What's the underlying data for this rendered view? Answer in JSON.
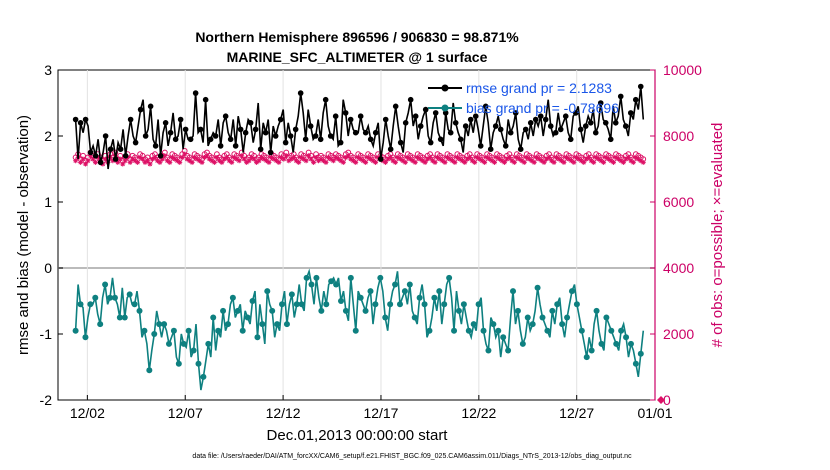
{
  "chart_data": {
    "type": "line",
    "title": "Northern Hemisphere 896596 / 906830 = 98.871%",
    "subtitle": "MARINE_SFC_ALTIMETER @ 1 surface",
    "xlabel": "Dec.01,2013 00:00:00 start",
    "ylabel_left": "rmse and bias (model - observation)",
    "ylabel_right": "# of obs: o=possible; ×=evaluated",
    "ylim_left": [
      -2,
      3
    ],
    "ylim_right": [
      0,
      10000
    ],
    "xlim": [
      0.5,
      31.0
    ],
    "xticks": [
      2,
      7,
      12,
      17,
      22,
      27,
      31
    ],
    "xtick_labels": [
      "12/02",
      "12/07",
      "12/12",
      "12/17",
      "12/22",
      "12/27",
      "01/01"
    ],
    "yticks_left": [
      "-2",
      "-1",
      "0",
      "1",
      "2",
      "3"
    ],
    "yticks_right": [
      "0",
      "2000",
      "4000",
      "6000",
      "8000",
      "10000"
    ],
    "footer": "data file: /Users/raeder/DAI/ATM_forcXX/CAM6_setup/f.e21.FHIST_BGC.f09_025.CAM6assim.011/Diags_NTrS_2013-12/obs_diag_output.nc",
    "legend": [
      {
        "label": "rmse grand pr = 2.1283",
        "color": "#000000"
      },
      {
        "label": "bias grand pr = -0.78696",
        "color": "#0e8080"
      }
    ],
    "colors": {
      "rmse": "#000000",
      "bias": "#0e8080",
      "obs": "#dd1166",
      "zero": "#bbbbbb"
    },
    "series": [
      {
        "name": "rmse",
        "values": [
          2.25,
          1.65,
          2.2,
          2.05,
          2.25,
          2.15,
          1.75,
          1.85,
          1.7,
          1.95,
          1.6,
          1.75,
          2.0,
          1.5,
          1.8,
          1.95,
          1.65,
          1.9,
          1.8,
          2.1,
          1.7,
          2.0,
          2.25,
          2.0,
          1.9,
          2.15,
          2.4,
          2.55,
          2.0,
          2.1,
          2.45,
          1.95,
          1.85,
          2.25,
          1.7,
          2.05,
          2.2,
          1.85,
          2.05,
          2.35,
          1.95,
          2.0,
          2.25,
          1.8,
          2.1,
          1.95,
          1.95,
          2.0,
          2.65,
          2.05,
          2.1,
          1.9,
          2.55,
          1.85,
          1.95,
          2.05,
          2.0,
          2.25,
          1.85,
          2.2,
          2.3,
          2.05,
          1.95,
          2.25,
          1.85,
          2.3,
          2.1,
          1.75,
          2.05,
          2.25,
          2.2,
          1.9,
          2.1,
          2.5,
          1.8,
          2.2,
          2.05,
          2.25,
          1.75,
          2.15,
          2.0,
          2.15,
          2.25,
          2.4,
          1.9,
          2.2,
          2.0,
          1.75,
          2.1,
          2.3,
          2.65,
          2.35,
          1.95,
          2.4,
          2.15,
          1.95,
          2.0,
          2.25,
          1.95,
          2.35,
          2.55,
          2.15,
          2.0,
          1.95,
          2.3,
          1.85,
          1.9,
          2.55,
          2.35,
          2.0,
          2.25,
          2.1,
          2.05,
          2.05,
          2.3,
          2.1,
          2.05,
          2.15,
          1.95,
          1.85,
          2.05,
          2.2,
          1.65,
          1.9,
          2.25,
          2.0,
          1.8,
          2.15,
          2.45,
          2.15,
          1.9,
          1.75,
          2.2,
          2.35,
          2.55,
          2.15,
          2.3,
          1.95,
          2.15,
          2.3,
          2.4,
          2.0,
          1.9,
          2.2,
          2.35,
          2.05,
          1.95,
          1.85,
          2.35,
          2.1,
          2.05,
          2.5,
          2.2,
          2.05,
          1.95,
          1.75,
          2.15,
          2.0,
          2.25,
          2.05,
          2.3,
          2.1,
          1.85,
          2.15,
          2.45,
          2.2,
          1.8,
          2.05,
          2.15,
          2.3,
          2.1,
          1.95,
          1.85,
          2.25,
          2.05,
          2.15,
          2.35,
          1.95,
          1.8,
          2.05,
          2.1,
          1.95,
          2.2,
          2.0,
          2.25,
          2.15,
          2.3,
          2.0,
          2.25,
          2.55,
          2.15,
          2.0,
          2.05,
          2.35,
          2.1,
          2.2,
          2.3,
          2.05,
          1.95,
          2.3,
          2.35,
          2.45,
          2.1,
          1.9,
          2.15,
          2.3,
          2.2,
          2.4,
          2.05,
          2.15,
          2.5,
          2.25,
          2.2,
          2.1,
          1.95,
          2.45,
          2.2,
          2.3,
          2.6,
          2.25,
          2.15,
          2.0,
          2.35,
          2.25,
          2.55,
          2.4,
          2.75,
          2.25
        ]
      },
      {
        "name": "bias",
        "values": [
          -0.95,
          -0.25,
          -0.55,
          -0.6,
          -1.05,
          -0.75,
          -0.55,
          -0.55,
          -0.45,
          -0.7,
          -0.85,
          -0.45,
          -0.25,
          -0.55,
          -0.45,
          -0.15,
          -0.45,
          -0.55,
          -0.75,
          -0.3,
          -0.75,
          -0.45,
          -0.4,
          -0.55,
          -0.55,
          -0.35,
          -0.65,
          -1.05,
          -0.95,
          -1.15,
          -1.55,
          -1.25,
          -1.0,
          -0.65,
          -0.85,
          -1.05,
          -0.85,
          -0.95,
          -1.15,
          -1.05,
          -0.95,
          -1.35,
          -1.45,
          -1.0,
          -1.15,
          -1.2,
          -0.95,
          -1.35,
          -1.25,
          -0.85,
          -1.45,
          -1.85,
          -1.65,
          -1.4,
          -1.15,
          -1.35,
          -0.75,
          -1.25,
          -0.95,
          -1.05,
          -0.65,
          -0.95,
          -0.85,
          -0.55,
          -0.45,
          -0.75,
          -0.65,
          -0.55,
          -0.95,
          -0.65,
          -0.75,
          -0.85,
          -0.5,
          -0.35,
          -1.05,
          -0.55,
          -0.85,
          -1.15,
          -0.35,
          -0.55,
          -0.65,
          -1.05,
          -0.85,
          -0.95,
          -0.55,
          -0.35,
          -0.85,
          -0.55,
          -0.4,
          -0.75,
          -0.55,
          -0.25,
          -0.55,
          -0.65,
          -0.15,
          -0.05,
          -0.25,
          -0.55,
          -0.15,
          -0.45,
          -0.65,
          -0.35,
          -0.55,
          -0.25,
          -0.2,
          -0.15,
          -0.25,
          -0.15,
          -0.5,
          -0.35,
          -0.65,
          -0.8,
          -0.15,
          -0.55,
          -0.95,
          -0.35,
          -0.45,
          -0.55,
          -0.65,
          -0.45,
          -0.35,
          -0.85,
          -0.55,
          -0.3,
          -0.15,
          -0.35,
          -0.75,
          -0.95,
          -0.55,
          -0.35,
          -0.25,
          -0.05,
          -0.55,
          -0.45,
          -0.35,
          -0.55,
          -0.25,
          -0.65,
          -0.75,
          -0.85,
          -0.45,
          -0.25,
          -0.55,
          -1.05,
          -0.95,
          -0.75,
          -0.45,
          -0.65,
          -0.35,
          -0.85,
          -0.55,
          -0.25,
          -0.15,
          -0.45,
          -0.95,
          -0.35,
          -0.65,
          -0.85,
          -0.55,
          -0.75,
          -0.95,
          -1.05,
          -0.85,
          -0.95,
          -0.55,
          -0.45,
          -0.95,
          -1.15,
          -1.25,
          -0.75,
          -0.85,
          -1.05,
          -0.95,
          -1.35,
          -1.05,
          -1.15,
          -1.25,
          -0.75,
          -0.35,
          -0.85,
          -0.65,
          -0.95,
          -1.15,
          -1.05,
          -0.75,
          -0.95,
          -0.85,
          -0.65,
          -0.3,
          -0.55,
          -0.75,
          -0.85,
          -0.95,
          -1.05,
          -0.65,
          -0.85,
          -0.55,
          -0.45,
          -0.85,
          -1.05,
          -0.75,
          -0.55,
          -0.35,
          -0.25,
          -0.55,
          -0.75,
          -0.95,
          -1.15,
          -1.35,
          -1.05,
          -1.25,
          -0.85,
          -0.65,
          -0.95,
          -1.15,
          -1.25,
          -0.75,
          -0.85,
          -0.95,
          -1.05,
          -1.15,
          -1.25,
          -0.95,
          -0.85,
          -1.05,
          -1.35,
          -1.15,
          -1.25,
          -1.45,
          -1.65,
          -1.3,
          -0.95
        ]
      },
      {
        "name": "possible",
        "values": [
          7350,
          7450,
          7300,
          7400,
          7250,
          7350,
          7500,
          7400,
          7300,
          7450,
          7350,
          7250,
          7400,
          7300,
          7450,
          7350,
          7500,
          7300,
          7400,
          7250,
          7350,
          7450,
          7300,
          7400,
          7350,
          7300,
          7450,
          7400,
          7300,
          7350,
          7250,
          7400,
          7450,
          7350,
          7300,
          7400,
          7500,
          7350,
          7300,
          7450,
          7400,
          7350,
          7300,
          7450,
          7550,
          7400,
          7350,
          7300,
          7450,
          7400,
          7350,
          7300,
          7450,
          7500,
          7400,
          7350,
          7300,
          7450,
          7350,
          7300,
          7400,
          7450,
          7350,
          7300,
          7450,
          7400,
          7350,
          7500,
          7400,
          7300,
          7350,
          7450,
          7400,
          7300,
          7350,
          7450,
          7400,
          7350,
          7300,
          7450,
          7400,
          7350,
          7300,
          7450,
          7400,
          7500,
          7350,
          7400,
          7450,
          7350,
          7300,
          7450,
          7400,
          7350,
          7500,
          7400,
          7300,
          7450,
          7350,
          7400,
          7350,
          7300,
          7450,
          7400,
          7350,
          7450,
          7400,
          7350,
          7300,
          7450,
          7500,
          7400,
          7350,
          7300,
          7450,
          7400,
          7350,
          7300,
          7450,
          7400,
          7350,
          7300,
          7450,
          7400,
          7350,
          7300,
          7400,
          7450,
          7350,
          7300,
          7450,
          7400,
          7350,
          7300,
          7450,
          7400,
          7350,
          7300,
          7450,
          7400,
          7350,
          7300,
          7400,
          7450,
          7350,
          7300,
          7450,
          7400,
          7350,
          7300,
          7450,
          7400,
          7350,
          7300,
          7450,
          7400,
          7350,
          7300,
          7400,
          7450,
          7350,
          7300,
          7450,
          7400,
          7350,
          7300,
          7450,
          7400,
          7350,
          7300,
          7450,
          7400,
          7350,
          7300,
          7400,
          7450,
          7350,
          7300,
          7450,
          7400,
          7350,
          7300,
          7450,
          7400,
          7350,
          7300,
          7450,
          7400,
          7350,
          7300,
          7400,
          7450,
          7350,
          7300,
          7450,
          7400,
          7350,
          7300,
          7450,
          7400,
          7350,
          7300,
          7450,
          7400,
          7350,
          7300,
          7400,
          7450,
          7350,
          7300,
          7450,
          7400,
          7350,
          7300,
          7450,
          7400,
          7350,
          7300,
          7450,
          7400,
          7350,
          7300,
          7400,
          7450,
          7350,
          7300,
          7450,
          7400,
          7350,
          7300
        ]
      },
      {
        "name": "evaluated",
        "values": [
          7250,
          7350,
          7200,
          7300,
          7150,
          7250,
          7400,
          7300,
          7200,
          7350,
          7250,
          7150,
          7300,
          7200,
          7350,
          7250,
          7400,
          7200,
          7300,
          7150,
          7250,
          7350,
          7200,
          7300,
          7250,
          7200,
          7350,
          7300,
          7200,
          7250,
          7150,
          7300,
          7350,
          7250,
          7200,
          7300,
          7400,
          7250,
          7200,
          7350,
          7300,
          7250,
          7200,
          7350,
          7450,
          7300,
          7250,
          7200,
          7350,
          7300,
          7250,
          7200,
          7350,
          7400,
          7300,
          7250,
          7200,
          7350,
          7250,
          7200,
          7300,
          7350,
          7250,
          7200,
          7350,
          7300,
          7250,
          7400,
          7300,
          7200,
          7250,
          7350,
          7300,
          7200,
          7250,
          7350,
          7300,
          7250,
          7200,
          7350,
          7300,
          7250,
          7200,
          7350,
          7300,
          7400,
          7250,
          7300,
          7350,
          7250,
          7200,
          7350,
          7300,
          7250,
          7400,
          7300,
          7200,
          7350,
          7250,
          7300,
          7250,
          7200,
          7350,
          7300,
          7250,
          7350,
          7300,
          7250,
          7200,
          7350,
          7400,
          7300,
          7250,
          7200,
          7350,
          7300,
          7250,
          7200,
          7350,
          7300,
          7250,
          7200,
          7350,
          7300,
          7250,
          7200,
          7300,
          7350,
          7250,
          7200,
          7350,
          7300,
          7250,
          7200,
          7350,
          7300,
          7250,
          7200,
          7350,
          7300,
          7250,
          7200,
          7300,
          7350,
          7250,
          7200,
          7350,
          7300,
          7250,
          7200,
          7350,
          7300,
          7250,
          7200,
          7350,
          7300,
          7250,
          7200,
          7300,
          7350,
          7250,
          7200,
          7350,
          7300,
          7250,
          7200,
          7350,
          7300,
          7250,
          7200,
          7350,
          7300,
          7250,
          7200,
          7300,
          7350,
          7250,
          7200,
          7350,
          7300,
          7250,
          7200,
          7350,
          7300,
          7250,
          7200,
          7350,
          7300,
          7250,
          7200,
          7300,
          7350,
          7250,
          7200,
          7350,
          7300,
          7250,
          7200,
          7350,
          7300,
          7250,
          7200,
          7350,
          7300,
          7250,
          7200,
          7300,
          7350,
          7250,
          7200,
          7350,
          7300,
          7250,
          7200,
          7350,
          7300,
          7250,
          7200,
          7350,
          7300,
          7250,
          7200,
          7300,
          7350,
          7250,
          7200,
          7350,
          7300,
          7250,
          7200
        ]
      }
    ]
  }
}
